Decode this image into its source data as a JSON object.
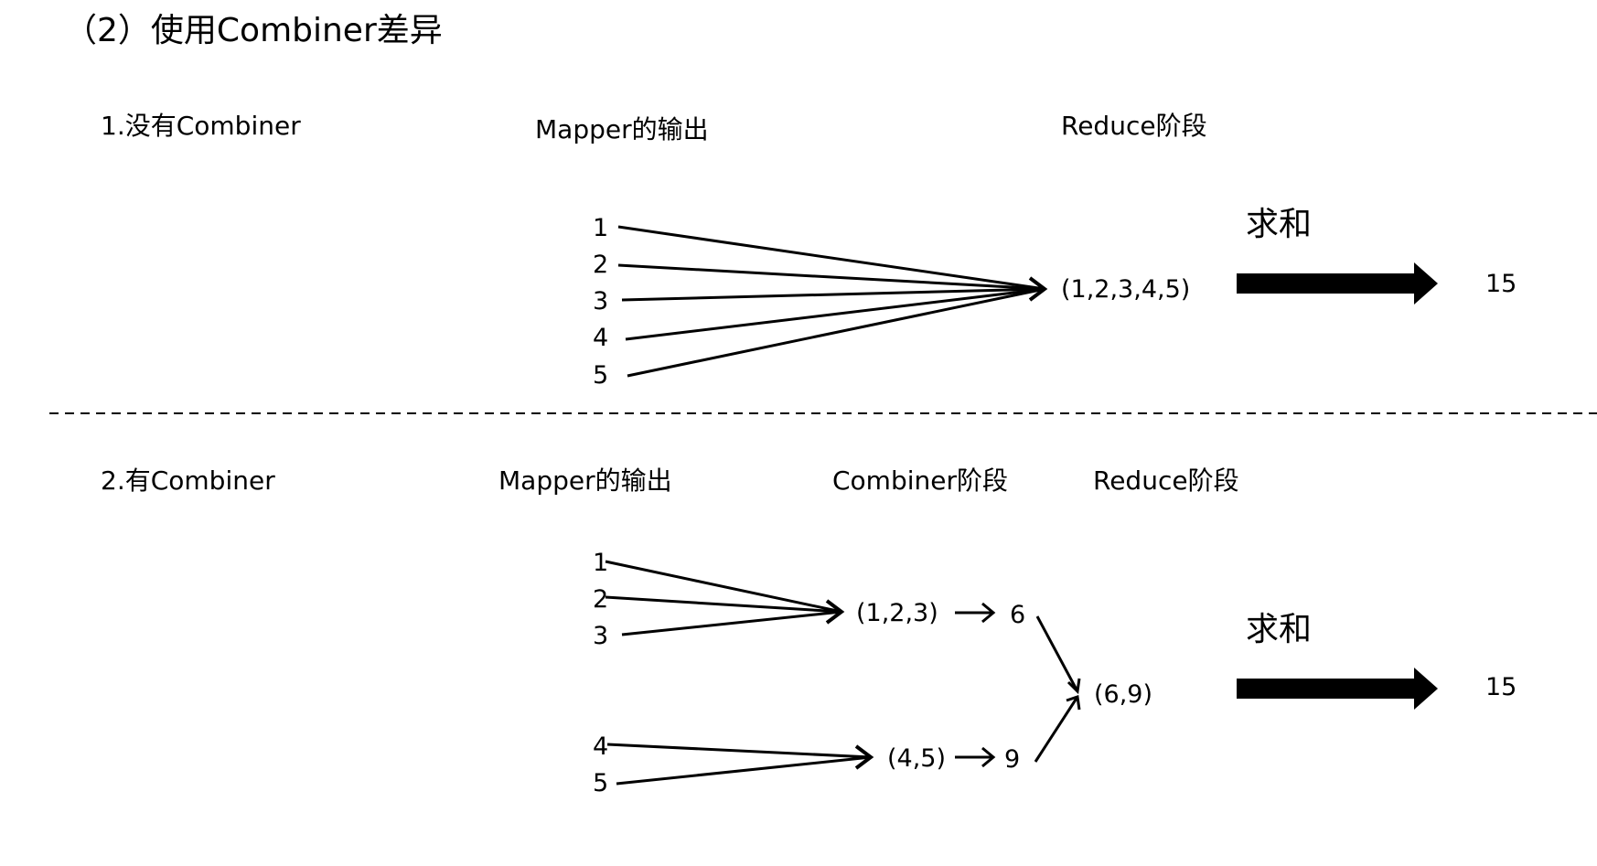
{
  "title": "（2）使用Combiner差异",
  "section1": {
    "heading": "1.没有Combiner",
    "mapper_label": "Mapper的输出",
    "reduce_label": "Reduce阶段",
    "mapper_values": [
      "1",
      "2",
      "3",
      "4",
      "5"
    ],
    "collected": "(1,2,3,4,5)",
    "operation": "求和",
    "result": "15"
  },
  "section2": {
    "heading": "2.有Combiner",
    "mapper_label": "Mapper的输出",
    "combiner_label": "Combiner阶段",
    "reduce_label": "Reduce阶段",
    "mapper_values_a": [
      "1",
      "2",
      "3"
    ],
    "mapper_values_b": [
      "4",
      "5"
    ],
    "combiner_input_a": "(1,2,3)",
    "combiner_output_a": "6",
    "combiner_input_b": "(4,5)",
    "combiner_output_b": "9",
    "collected": "(6,9)",
    "operation": "求和",
    "result": "15"
  }
}
